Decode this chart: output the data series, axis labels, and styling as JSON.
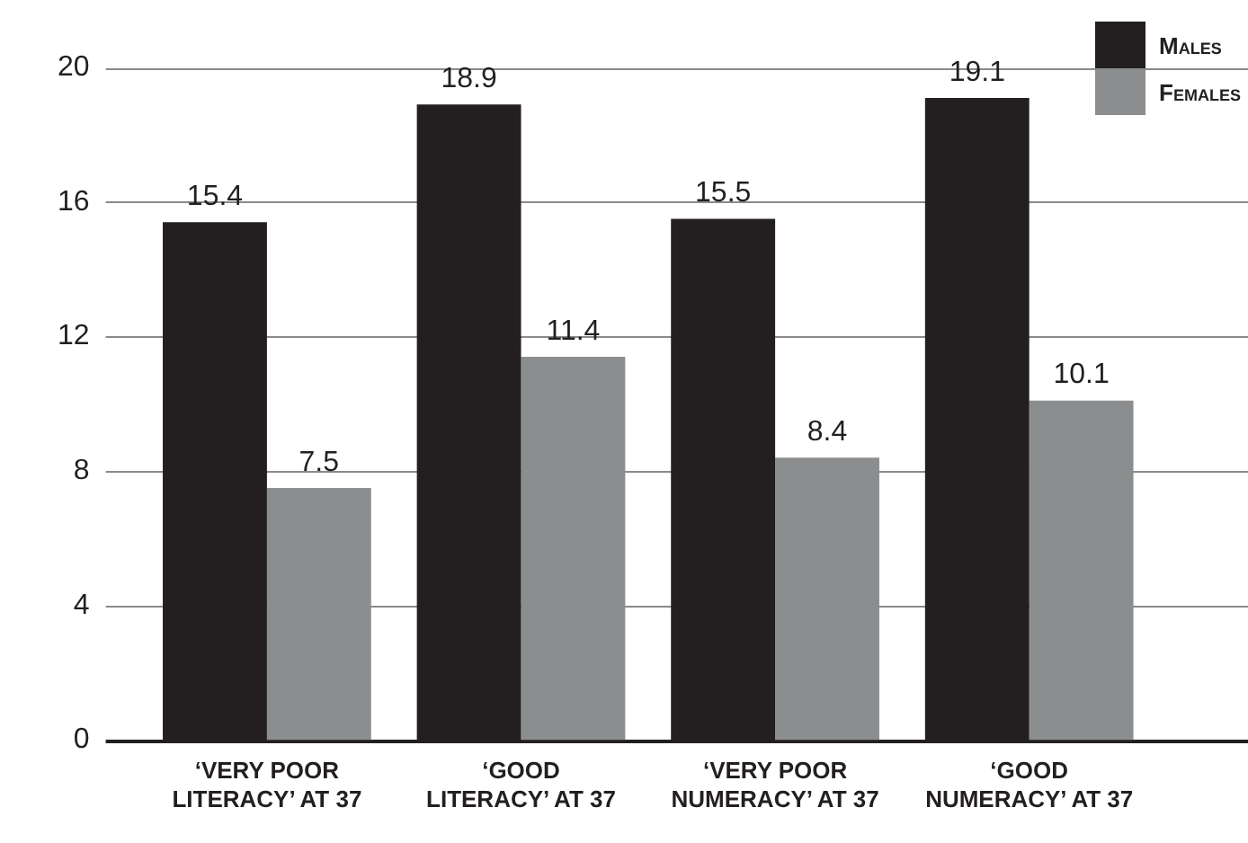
{
  "chart_data": {
    "type": "bar",
    "categories": [
      "‘VERY POOR LITERACY’ AT 37",
      "‘GOOD LITERACY’ AT 37",
      "‘VERY POOR NUMERACY’ AT 37",
      "‘GOOD NUMERACY’ AT 37"
    ],
    "series": [
      {
        "name": "Males",
        "color": "#231f20",
        "values": [
          15.4,
          18.9,
          15.5,
          19.1
        ]
      },
      {
        "name": "Females",
        "color": "#8c8d8f",
        "values": [
          7.5,
          11.4,
          8.4,
          10.1
        ]
      }
    ],
    "ylim": [
      0,
      20
    ],
    "yticks": [
      0,
      4,
      8,
      12,
      16,
      20
    ],
    "grid": "y",
    "legend": "top right",
    "data_labels": true
  }
}
